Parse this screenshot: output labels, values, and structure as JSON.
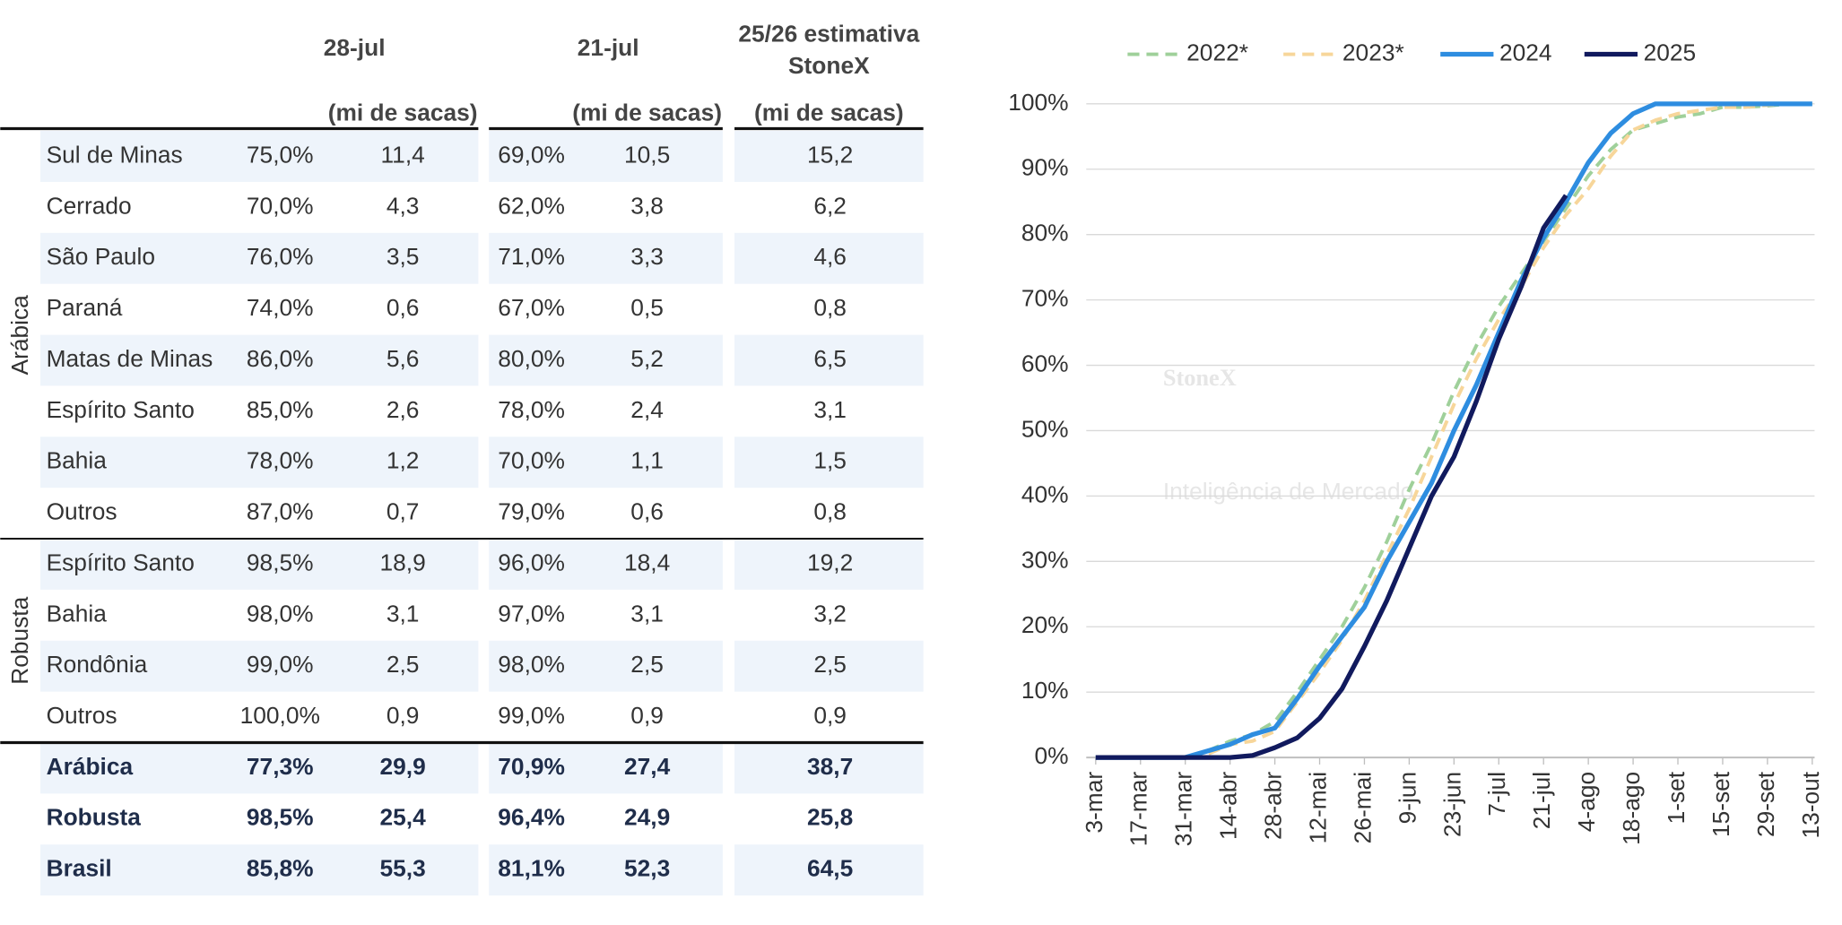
{
  "table": {
    "headers": [
      "28-jul",
      "21-jul"
    ],
    "estimate_header": [
      "25/26 estimativa",
      "StoneX"
    ],
    "units": [
      "(mi de sacas)",
      "(mi de sacas)",
      "(mi de sacas)"
    ],
    "groups": [
      "Arábica",
      "Robusta"
    ],
    "rows": [
      [
        "Sul de Minas",
        "75,0%",
        "11,4",
        "69,0%",
        "10,5",
        "15,2"
      ],
      [
        "Cerrado",
        "70,0%",
        "4,3",
        "62,0%",
        "3,8",
        "6,2"
      ],
      [
        "São Paulo",
        "76,0%",
        "3,5",
        "71,0%",
        "3,3",
        "4,6"
      ],
      [
        "Paraná",
        "74,0%",
        "0,6",
        "67,0%",
        "0,5",
        "0,8"
      ],
      [
        "Matas de Minas",
        "86,0%",
        "5,6",
        "80,0%",
        "5,2",
        "6,5"
      ],
      [
        "Espírito Santo",
        "85,0%",
        "2,6",
        "78,0%",
        "2,4",
        "3,1"
      ],
      [
        "Bahia",
        "78,0%",
        "1,2",
        "70,0%",
        "1,1",
        "1,5"
      ],
      [
        "Outros",
        "87,0%",
        "0,7",
        "79,0%",
        "0,6",
        "0,8"
      ],
      [
        "Espírito Santo",
        "98,5%",
        "18,9",
        "96,0%",
        "18,4",
        "19,2"
      ],
      [
        "Bahia",
        "98,0%",
        "3,1",
        "97,0%",
        "3,1",
        "3,2"
      ],
      [
        "Rondônia",
        "99,0%",
        "2,5",
        "98,0%",
        "2,5",
        "2,5"
      ],
      [
        "Outros",
        "100,0%",
        "0,9",
        "99,0%",
        "0,9",
        "0,9"
      ],
      [
        "Arábica",
        "77,3%",
        "29,9",
        "70,9%",
        "27,4",
        "38,7"
      ],
      [
        "Robusta",
        "98,5%",
        "25,4",
        "96,4%",
        "24,9",
        "25,8"
      ],
      [
        "Brasil",
        "85,8%",
        "55,3",
        "81,1%",
        "52,3",
        "64,5"
      ]
    ]
  },
  "chart_data": {
    "type": "line",
    "watermark": [
      "StoneX",
      "Inteligência de Mercado"
    ],
    "categories": [
      "3-mar",
      null,
      "17-mar",
      null,
      "31-mar",
      null,
      "14-abr",
      null,
      "28-abr",
      null,
      "12-mai",
      null,
      "26-mai",
      null,
      "9-jun",
      null,
      "23-jun",
      null,
      "7-jul",
      null,
      "21-jul",
      null,
      "4-ago",
      null,
      "18-ago",
      null,
      "1-set",
      null,
      "15-set",
      null,
      "29-set",
      null,
      "13-out"
    ],
    "series": [
      {
        "name": "2022*",
        "color": "#9fd09a",
        "dashed": true,
        "values": [
          0,
          0,
          0,
          0,
          0,
          1,
          2.5,
          3.5,
          5.5,
          10,
          15,
          20,
          26,
          33,
          41,
          48,
          56,
          63,
          69,
          74,
          79,
          84,
          89,
          93,
          96,
          97,
          98,
          98.5,
          99.5,
          99.5,
          99.7,
          100,
          100
        ]
      },
      {
        "name": "2023*",
        "color": "#f7d69a",
        "dashed": true,
        "values": [
          0,
          0,
          0,
          0,
          0,
          0.5,
          2,
          2.5,
          4,
          8.5,
          13,
          18,
          24,
          31,
          38,
          46,
          54,
          61,
          67,
          72,
          78,
          83,
          87,
          92,
          96,
          97.5,
          98.5,
          99,
          99.5,
          99.5,
          99.8,
          100,
          100
        ]
      },
      {
        "name": "2024",
        "color": "#2e8de0",
        "dashed": false,
        "values": [
          0,
          0,
          0,
          0,
          0,
          1,
          2,
          3.5,
          4.5,
          9,
          14,
          18.5,
          23,
          30,
          36,
          42,
          50,
          57,
          65,
          73,
          79.5,
          85,
          91,
          95.5,
          98.5,
          100,
          100,
          100,
          100,
          100,
          100,
          100,
          100
        ]
      },
      {
        "name": "2025",
        "color": "#111a5e",
        "dashed": false,
        "values": [
          0,
          0,
          0,
          0,
          0,
          0,
          0,
          0.3,
          1.5,
          3,
          6,
          10.5,
          17,
          24,
          32,
          40,
          46,
          54.5,
          64,
          72,
          81,
          86,
          null,
          null,
          null,
          null,
          null,
          null,
          null,
          null,
          null,
          null,
          null
        ]
      }
    ],
    "ylim": [
      0,
      100
    ],
    "yticks": [
      {
        "value": 0,
        "label": "0%"
      },
      {
        "value": 10,
        "label": "10%"
      },
      {
        "value": 20,
        "label": "20%"
      },
      {
        "value": 30,
        "label": "30%"
      },
      {
        "value": 40,
        "label": "40%"
      },
      {
        "value": 50,
        "label": "50%"
      },
      {
        "value": 60,
        "label": "60%"
      },
      {
        "value": 70,
        "label": "70%"
      },
      {
        "value": 80,
        "label": "80%"
      },
      {
        "value": 90,
        "label": "90%"
      },
      {
        "value": 100,
        "label": "100%"
      }
    ],
    "grid": true,
    "legend": "top"
  }
}
